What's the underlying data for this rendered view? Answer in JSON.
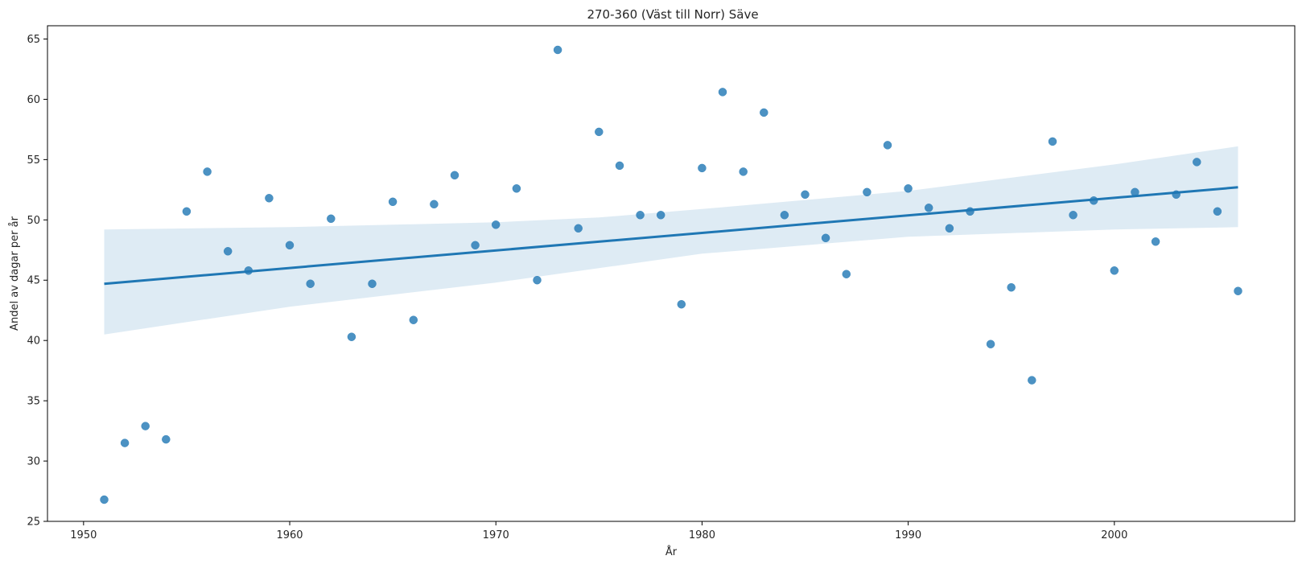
{
  "chart_data": {
    "type": "scatter",
    "title": "270-360 (Väst till Norr) Säve",
    "xlabel": "År",
    "ylabel": "Andel av dagar per år",
    "xlim": [
      1948.25,
      2008.75
    ],
    "ylim": [
      25,
      66.1
    ],
    "x_ticks": [
      1950,
      1960,
      1970,
      1980,
      1990,
      2000
    ],
    "y_ticks": [
      25,
      30,
      35,
      40,
      45,
      50,
      55,
      60,
      65
    ],
    "grid": false,
    "legend": "none",
    "colors": {
      "points": "#1f77b4",
      "line": "#1f77b4",
      "band": "#1f77b4"
    },
    "points": {
      "x": [
        1951,
        1952,
        1953,
        1954,
        1955,
        1956,
        1957,
        1958,
        1959,
        1960,
        1961,
        1962,
        1963,
        1964,
        1965,
        1966,
        1967,
        1968,
        1969,
        1970,
        1971,
        1972,
        1973,
        1974,
        1975,
        1976,
        1977,
        1978,
        1979,
        1980,
        1981,
        1982,
        1983,
        1984,
        1985,
        1986,
        1987,
        1988,
        1989,
        1990,
        1991,
        1992,
        1993,
        1994,
        1995,
        1996,
        1997,
        1998,
        1999,
        2000,
        2001,
        2002,
        2003,
        2004,
        2005,
        2006
      ],
      "y": [
        26.8,
        31.5,
        32.9,
        31.8,
        50.7,
        54.0,
        47.4,
        45.8,
        51.8,
        47.9,
        44.7,
        50.1,
        40.3,
        44.7,
        51.5,
        41.7,
        51.3,
        53.7,
        47.9,
        49.6,
        52.6,
        45.0,
        64.1,
        49.3,
        57.3,
        54.5,
        50.4,
        50.4,
        43.0,
        54.3,
        60.6,
        54.0,
        58.9,
        50.4,
        52.1,
        48.5,
        45.5,
        52.3,
        56.2,
        52.6,
        51.0,
        49.3,
        50.7,
        39.7,
        44.4,
        36.7,
        56.5,
        50.4,
        51.6,
        45.8,
        52.3,
        48.2,
        52.1,
        54.8,
        50.7,
        44.1
      ]
    },
    "regression": {
      "x": [
        1951,
        2006
      ],
      "y": [
        44.7,
        52.7
      ]
    },
    "confidence_band": {
      "x": [
        1951,
        1960,
        1970,
        1975,
        1980,
        1990,
        2000,
        2006
      ],
      "lower": [
        40.5,
        42.8,
        44.8,
        46.0,
        47.2,
        48.6,
        49.2,
        49.4
      ],
      "upper": [
        49.2,
        49.4,
        49.8,
        50.2,
        50.9,
        52.4,
        54.6,
        56.1
      ]
    }
  }
}
